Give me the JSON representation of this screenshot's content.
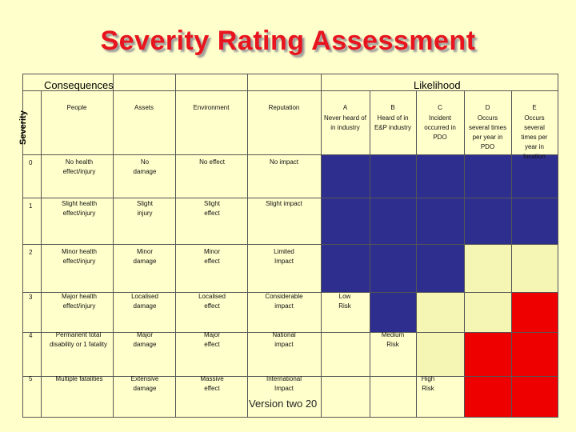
{
  "title": "Severity Rating Assessment",
  "header": {
    "consequences": "Consequences",
    "likelihood": "Likelihood",
    "severity": "Severity"
  },
  "columns": {
    "people": "People",
    "assets": "Assets",
    "environment": "Environment",
    "reputation": "Reputation",
    "likelihood": [
      {
        "letter": "A",
        "desc": "Never heard of in industry"
      },
      {
        "letter": "B",
        "desc": "Heard of in E&P industry"
      },
      {
        "letter": "C",
        "desc": "Incident occurred in PDO"
      },
      {
        "letter": "D",
        "desc": "Occurs several times per year in PDO"
      },
      {
        "letter": "E",
        "desc": "Occurs several times per year in location"
      }
    ]
  },
  "rows": [
    {
      "severity": "0",
      "people": "No health effect/injury",
      "assets": "No damage",
      "environment": "No effect",
      "reputation": "No impact"
    },
    {
      "severity": "1",
      "people": "Slight health effect/injury",
      "assets": "Slight injury",
      "environment": "Slight effect",
      "reputation": "Slight impact"
    },
    {
      "severity": "2",
      "people": "Minor health effect/injury",
      "assets": "Minor damage",
      "environment": "Minor effect",
      "reputation": "Limited Impact"
    },
    {
      "severity": "3",
      "people": "Major health effect/injury",
      "assets": "Localised damage",
      "environment": "Localised effect",
      "reputation": "Considerable impact"
    },
    {
      "severity": "4",
      "people": "Permanent total disability or 1 fatality",
      "assets": "Major damage",
      "environment": "Major effect",
      "reputation": "National impact"
    },
    {
      "severity": "5",
      "people": "Multiple fatalities",
      "assets": "Extensive damage",
      "environment": "Massive effect",
      "reputation": "International Impact"
    }
  ],
  "risk_labels": {
    "low": "Low Risk",
    "medium": "Medium Risk",
    "high": "High Risk"
  },
  "footer": "Version two 20",
  "colors": {
    "low": "#2e2e8f",
    "medium": "#f5f5b4",
    "high": "#ef0000",
    "background": "#ffffcc",
    "title": "#e8141e"
  }
}
